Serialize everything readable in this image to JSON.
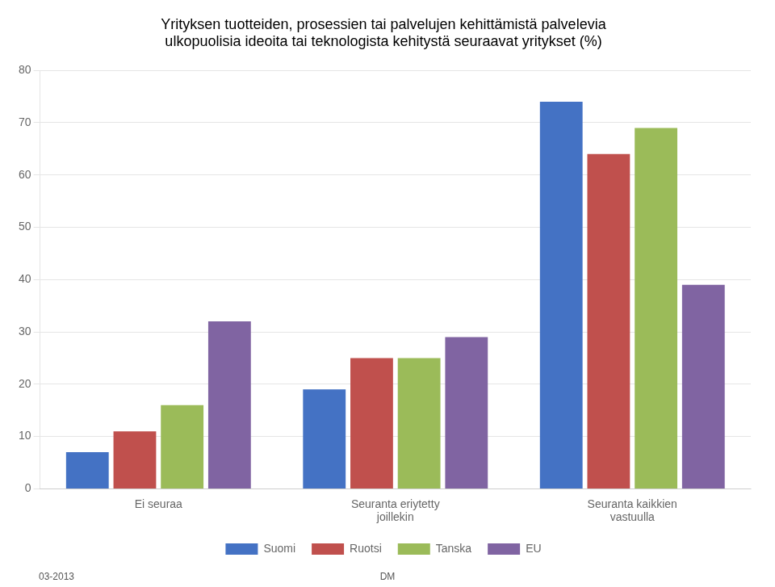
{
  "chart_data": {
    "type": "bar",
    "title": "Yrityksen tuotteiden, prosessien tai palvelujen kehittämistä palvelevia\nulkopuolisia ideoita tai teknologista kehitystä seuraavat yritykset (%)",
    "categories": [
      "Ei seuraa",
      "Seuranta eriytetty\njoillekin",
      "Seuranta kaikkien\nvastuulla"
    ],
    "series": [
      {
        "name": "Suomi",
        "color": "#4472C4",
        "values": [
          7,
          19,
          74
        ]
      },
      {
        "name": "Ruotsi",
        "color": "#C0504D",
        "values": [
          11,
          25,
          64
        ]
      },
      {
        "name": "Tanska",
        "color": "#9BBB59",
        "values": [
          16,
          25,
          69
        ]
      },
      {
        "name": "EU",
        "color": "#8064A2",
        "values": [
          32,
          29,
          39
        ]
      }
    ],
    "ylim": [
      0,
      80
    ],
    "yticks": [
      0,
      10,
      20,
      30,
      40,
      50,
      60,
      70,
      80
    ],
    "grid": true,
    "legend": "bottom",
    "annotations": [
      "03-2013",
      "DM"
    ]
  }
}
